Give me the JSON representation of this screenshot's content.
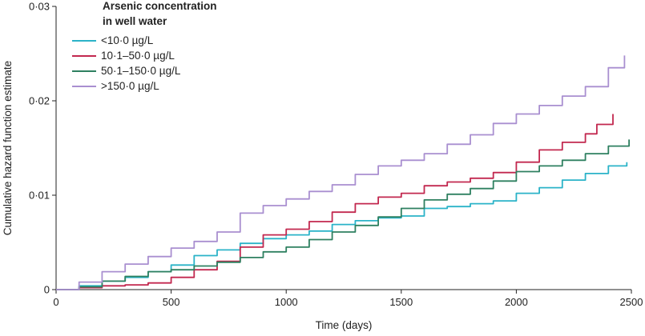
{
  "chart_data": {
    "type": "line",
    "xlabel": "Time (days)",
    "ylabel": "Cumulative hazard function estimate",
    "xlim": [
      0,
      2500
    ],
    "ylim": [
      0,
      0.03
    ],
    "x_ticks": [
      {
        "value": 0,
        "label": "0"
      },
      {
        "value": 500,
        "label": "500"
      },
      {
        "value": 1000,
        "label": "1000"
      },
      {
        "value": 1500,
        "label": "1500"
      },
      {
        "value": 2000,
        "label": "2000"
      },
      {
        "value": 2500,
        "label": "2500"
      }
    ],
    "y_ticks": [
      {
        "value": 0,
        "label": "0"
      },
      {
        "value": 0.01,
        "label": "0·01"
      },
      {
        "value": 0.02,
        "label": "0·02"
      },
      {
        "value": 0.03,
        "label": "0·03"
      }
    ],
    "grid": false,
    "legend": {
      "title_lines": [
        "Arsenic concentration",
        "in well water"
      ],
      "placement": "top-left"
    },
    "series": [
      {
        "name": "<10·0 µg/L",
        "color": "#2bb3c8",
        "points": [
          [
            0,
            0
          ],
          [
            100,
            0.0004
          ],
          [
            200,
            0.0009
          ],
          [
            300,
            0.0013
          ],
          [
            400,
            0.0019
          ],
          [
            500,
            0.0026
          ],
          [
            600,
            0.0036
          ],
          [
            700,
            0.0042
          ],
          [
            800,
            0.0049
          ],
          [
            900,
            0.0054
          ],
          [
            1000,
            0.0058
          ],
          [
            1100,
            0.0062
          ],
          [
            1200,
            0.0069
          ],
          [
            1300,
            0.0073
          ],
          [
            1400,
            0.0076
          ],
          [
            1500,
            0.0078
          ],
          [
            1600,
            0.0086
          ],
          [
            1700,
            0.0088
          ],
          [
            1800,
            0.0091
          ],
          [
            1900,
            0.0094
          ],
          [
            2000,
            0.0102
          ],
          [
            2100,
            0.0108
          ],
          [
            2200,
            0.0116
          ],
          [
            2300,
            0.0123
          ],
          [
            2400,
            0.0131
          ],
          [
            2480,
            0.0135
          ]
        ]
      },
      {
        "name": "10·1–50·0 µg/L",
        "color": "#c2284f",
        "points": [
          [
            0,
            0
          ],
          [
            100,
            0.0002
          ],
          [
            200,
            0.0004
          ],
          [
            300,
            0.0005
          ],
          [
            400,
            0.0007
          ],
          [
            500,
            0.0013
          ],
          [
            600,
            0.0021
          ],
          [
            700,
            0.003
          ],
          [
            800,
            0.0045
          ],
          [
            900,
            0.0058
          ],
          [
            1000,
            0.0064
          ],
          [
            1100,
            0.0072
          ],
          [
            1200,
            0.0082
          ],
          [
            1300,
            0.0091
          ],
          [
            1400,
            0.0098
          ],
          [
            1500,
            0.0102
          ],
          [
            1600,
            0.011
          ],
          [
            1700,
            0.0114
          ],
          [
            1800,
            0.0118
          ],
          [
            1900,
            0.0124
          ],
          [
            2000,
            0.0135
          ],
          [
            2100,
            0.0148
          ],
          [
            2200,
            0.0156
          ],
          [
            2300,
            0.0165
          ],
          [
            2350,
            0.0175
          ],
          [
            2420,
            0.0186
          ]
        ]
      },
      {
        "name": "50·1–150·0 µg/L",
        "color": "#2e8060",
        "points": [
          [
            0,
            0
          ],
          [
            100,
            0.0003
          ],
          [
            200,
            0.0009
          ],
          [
            300,
            0.0014
          ],
          [
            400,
            0.0019
          ],
          [
            500,
            0.0021
          ],
          [
            600,
            0.0025
          ],
          [
            700,
            0.0029
          ],
          [
            800,
            0.0034
          ],
          [
            900,
            0.004
          ],
          [
            1000,
            0.0045
          ],
          [
            1100,
            0.0053
          ],
          [
            1200,
            0.0061
          ],
          [
            1300,
            0.0068
          ],
          [
            1400,
            0.0077
          ],
          [
            1500,
            0.0086
          ],
          [
            1600,
            0.0095
          ],
          [
            1700,
            0.0101
          ],
          [
            1800,
            0.0107
          ],
          [
            1900,
            0.0115
          ],
          [
            2000,
            0.0125
          ],
          [
            2100,
            0.0131
          ],
          [
            2200,
            0.0137
          ],
          [
            2300,
            0.0144
          ],
          [
            2400,
            0.0152
          ],
          [
            2490,
            0.0159
          ]
        ]
      },
      {
        "name": ">150·0 µg/L",
        "color": "#a98fd0",
        "points": [
          [
            0,
            0
          ],
          [
            100,
            0.0008
          ],
          [
            200,
            0.0019
          ],
          [
            300,
            0.0027
          ],
          [
            400,
            0.0035
          ],
          [
            500,
            0.0044
          ],
          [
            600,
            0.0051
          ],
          [
            700,
            0.0061
          ],
          [
            800,
            0.0081
          ],
          [
            900,
            0.0089
          ],
          [
            1000,
            0.0096
          ],
          [
            1100,
            0.0104
          ],
          [
            1200,
            0.0111
          ],
          [
            1300,
            0.0122
          ],
          [
            1400,
            0.0131
          ],
          [
            1500,
            0.0137
          ],
          [
            1600,
            0.0144
          ],
          [
            1700,
            0.0154
          ],
          [
            1800,
            0.0164
          ],
          [
            1900,
            0.0176
          ],
          [
            2000,
            0.0186
          ],
          [
            2100,
            0.0195
          ],
          [
            2200,
            0.0205
          ],
          [
            2300,
            0.0215
          ],
          [
            2400,
            0.0235
          ],
          [
            2470,
            0.0248
          ]
        ]
      }
    ]
  }
}
